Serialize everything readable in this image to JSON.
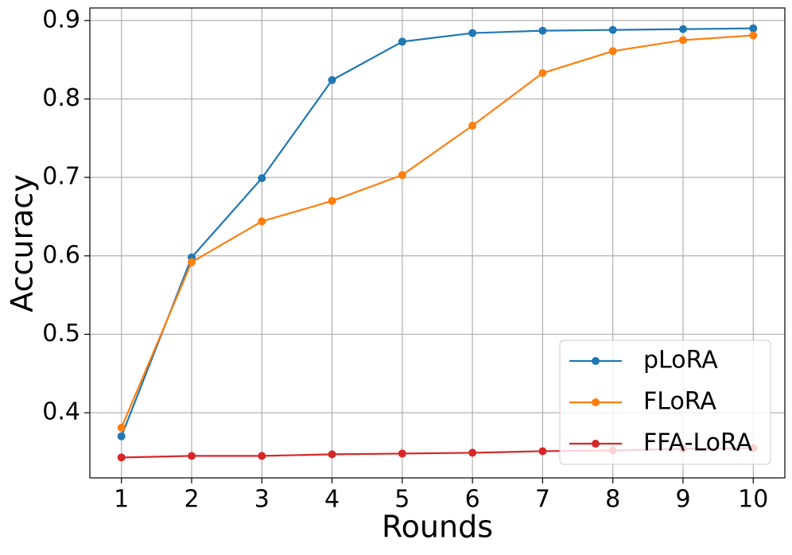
{
  "chart_data": {
    "type": "line",
    "x_label": "Rounds",
    "y_label": "Accuracy",
    "x": [
      1,
      2,
      3,
      4,
      5,
      6,
      7,
      8,
      9,
      10
    ],
    "series": [
      {
        "name": "pLoRA",
        "color": "#1f77b4",
        "values": [
          0.37,
          0.598,
          0.699,
          0.824,
          0.873,
          0.884,
          0.887,
          0.888,
          0.889,
          0.89
        ]
      },
      {
        "name": "FLoRA",
        "color": "#ff7f0e",
        "values": [
          0.381,
          0.592,
          0.644,
          0.67,
          0.703,
          0.766,
          0.833,
          0.861,
          0.875,
          0.881
        ]
      },
      {
        "name": "FFA-LoRA",
        "color": "#d62728",
        "values": [
          0.343,
          0.345,
          0.345,
          0.347,
          0.348,
          0.349,
          0.351,
          0.352,
          0.354,
          0.355
        ]
      }
    ],
    "xlim": [
      0.55,
      10.45
    ],
    "xticks": [
      1,
      2,
      3,
      4,
      5,
      6,
      7,
      8,
      9,
      10
    ],
    "ylim": [
      0.317,
      0.916
    ],
    "yticks": [
      0.4,
      0.5,
      0.6,
      0.7,
      0.8,
      0.9
    ],
    "grid": true,
    "legend": "lower right"
  }
}
